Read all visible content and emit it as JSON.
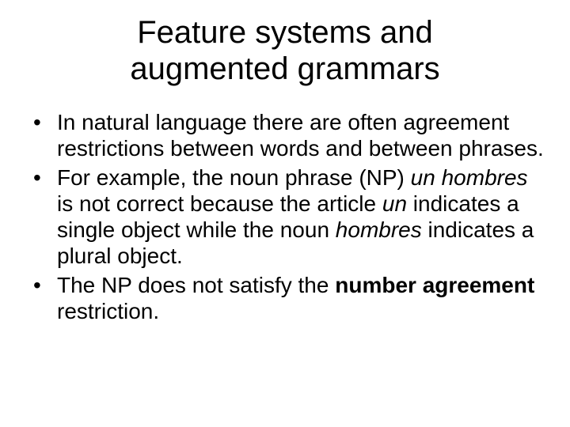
{
  "title_line1": "Feature systems and",
  "title_line2": "augmented grammars",
  "bullets": [
    {
      "pre": "In natural language there are often agreement restrictions between words and between phrases."
    },
    {
      "pre": "For example, the noun phrase (NP) ",
      "em1": "un hombres",
      "mid1": " is not correct because the article ",
      "em2": "un",
      "mid2": " indicates a single object while the noun ",
      "em3": "hombres",
      "post": " indicates a plural object."
    },
    {
      "pre": "The NP does not satisfy the ",
      "strong": "number agreement",
      "post": " restriction."
    }
  ],
  "colors": {
    "background": "#ffffff",
    "text": "#000000"
  },
  "font": {
    "family": "Arial",
    "title_size_pt": 40,
    "body_size_pt": 28
  }
}
